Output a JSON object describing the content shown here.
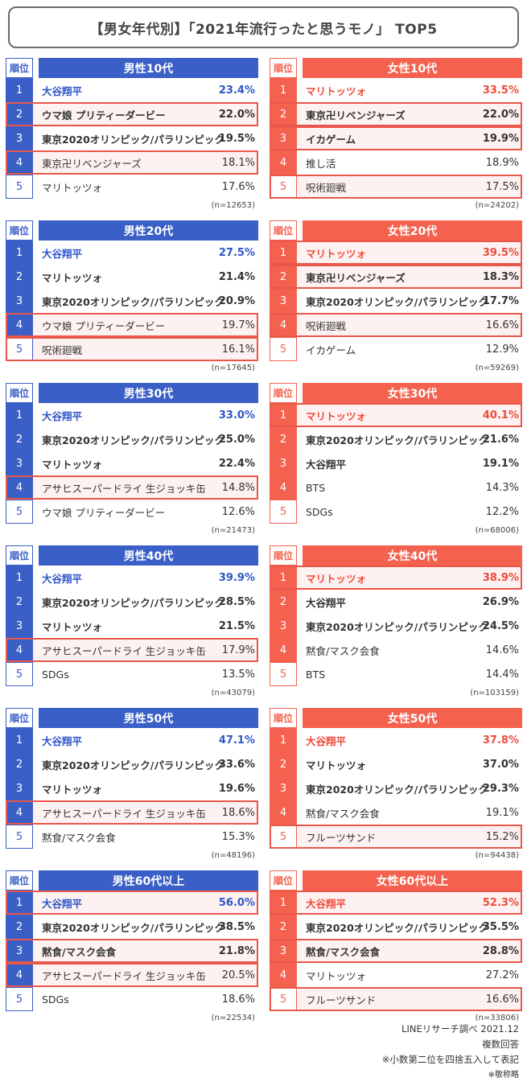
{
  "title": "【男女年代別】「2021年流行ったと思うモノ」 TOP5",
  "rank_header": "順位",
  "colors": {
    "male": "#3a5fc6",
    "female": "#f4624f",
    "highlight_border": "#e9574b"
  },
  "notes": [
    "LINEリサーチ調べ 2021.12",
    "複数回答",
    "※小数第二位を四捨五入して表記",
    "※敬称略"
  ],
  "chart_data": {
    "type": "table",
    "title": "【男女年代別】「2021年流行ったと思うモノ」 TOP5",
    "panels": [
      {
        "gender": "male",
        "title": "男性10代",
        "n": "(n=12653)",
        "rows": [
          {
            "rank": "1",
            "name": "大谷翔平",
            "value": "23.4%",
            "hl": false
          },
          {
            "rank": "2",
            "name": "ウマ娘 プリティーダービー",
            "value": "22.0%",
            "hl": true
          },
          {
            "rank": "3",
            "name": "東京2020オリンピック/パラリンピック",
            "value": "19.5%",
            "hl": false
          },
          {
            "rank": "4",
            "name": "東京卍リベンジャーズ",
            "value": "18.1%",
            "hl": true
          },
          {
            "rank": "5",
            "name": "マリトッツォ",
            "value": "17.6%",
            "hl": false
          }
        ]
      },
      {
        "gender": "female",
        "title": "女性10代",
        "n": "(n=24202)",
        "rows": [
          {
            "rank": "1",
            "name": "マリトッツォ",
            "value": "33.5%",
            "hl": false
          },
          {
            "rank": "2",
            "name": "東京卍リベンジャーズ",
            "value": "22.0%",
            "hl": true
          },
          {
            "rank": "3",
            "name": "イカゲーム",
            "value": "19.9%",
            "hl": true
          },
          {
            "rank": "4",
            "name": "推し活",
            "value": "18.9%",
            "hl": false
          },
          {
            "rank": "5",
            "name": "呪術廻戦",
            "value": "17.5%",
            "hl": true
          }
        ]
      },
      {
        "gender": "male",
        "title": "男性20代",
        "n": "(n=17645)",
        "rows": [
          {
            "rank": "1",
            "name": "大谷翔平",
            "value": "27.5%",
            "hl": false
          },
          {
            "rank": "2",
            "name": "マリトッツォ",
            "value": "21.4%",
            "hl": false
          },
          {
            "rank": "3",
            "name": "東京2020オリンピック/パラリンピック",
            "value": "20.9%",
            "hl": false
          },
          {
            "rank": "4",
            "name": "ウマ娘 プリティーダービー",
            "value": "19.7%",
            "hl": true
          },
          {
            "rank": "5",
            "name": "呪術廻戦",
            "value": "16.1%",
            "hl": true
          }
        ]
      },
      {
        "gender": "female",
        "title": "女性20代",
        "n": "(n=59269)",
        "rows": [
          {
            "rank": "1",
            "name": "マリトッツォ",
            "value": "39.5%",
            "hl": true
          },
          {
            "rank": "2",
            "name": "東京卍リベンジャーズ",
            "value": "18.3%",
            "hl": true
          },
          {
            "rank": "3",
            "name": "東京2020オリンピック/パラリンピック",
            "value": "17.7%",
            "hl": false
          },
          {
            "rank": "4",
            "name": "呪術廻戦",
            "value": "16.6%",
            "hl": true
          },
          {
            "rank": "5",
            "name": "イカゲーム",
            "value": "12.9%",
            "hl": false
          }
        ]
      },
      {
        "gender": "male",
        "title": "男性30代",
        "n": "(n=21473)",
        "rows": [
          {
            "rank": "1",
            "name": "大谷翔平",
            "value": "33.0%",
            "hl": false
          },
          {
            "rank": "2",
            "name": "東京2020オリンピック/パラリンピック",
            "value": "25.0%",
            "hl": false
          },
          {
            "rank": "3",
            "name": "マリトッツォ",
            "value": "22.4%",
            "hl": false
          },
          {
            "rank": "4",
            "name": "アサヒスーパードライ 生ジョッキ缶",
            "value": "14.8%",
            "hl": true
          },
          {
            "rank": "5",
            "name": "ウマ娘 プリティーダービー",
            "value": "12.6%",
            "hl": false
          }
        ]
      },
      {
        "gender": "female",
        "title": "女性30代",
        "n": "(n=68006)",
        "rows": [
          {
            "rank": "1",
            "name": "マリトッツォ",
            "value": "40.1%",
            "hl": true
          },
          {
            "rank": "2",
            "name": "東京2020オリンピック/パラリンピック",
            "value": "21.6%",
            "hl": false
          },
          {
            "rank": "3",
            "name": "大谷翔平",
            "value": "19.1%",
            "hl": false
          },
          {
            "rank": "4",
            "name": "BTS",
            "value": "14.3%",
            "hl": false
          },
          {
            "rank": "5",
            "name": "SDGs",
            "value": "12.2%",
            "hl": false
          }
        ]
      },
      {
        "gender": "male",
        "title": "男性40代",
        "n": "(n=43079)",
        "rows": [
          {
            "rank": "1",
            "name": "大谷翔平",
            "value": "39.9%",
            "hl": false
          },
          {
            "rank": "2",
            "name": "東京2020オリンピック/パラリンピック",
            "value": "28.5%",
            "hl": false
          },
          {
            "rank": "3",
            "name": "マリトッツォ",
            "value": "21.5%",
            "hl": false
          },
          {
            "rank": "4",
            "name": "アサヒスーパードライ 生ジョッキ缶",
            "value": "17.9%",
            "hl": true
          },
          {
            "rank": "5",
            "name": "SDGs",
            "value": "13.5%",
            "hl": false
          }
        ]
      },
      {
        "gender": "female",
        "title": "女性40代",
        "n": "(n=103159)",
        "rows": [
          {
            "rank": "1",
            "name": "マリトッツォ",
            "value": "38.9%",
            "hl": true
          },
          {
            "rank": "2",
            "name": "大谷翔平",
            "value": "26.9%",
            "hl": false
          },
          {
            "rank": "3",
            "name": "東京2020オリンピック/パラリンピック",
            "value": "24.5%",
            "hl": false
          },
          {
            "rank": "4",
            "name": "黙食/マスク会食",
            "value": "14.6%",
            "hl": false
          },
          {
            "rank": "5",
            "name": "BTS",
            "value": "14.4%",
            "hl": false
          }
        ]
      },
      {
        "gender": "male",
        "title": "男性50代",
        "n": "(n=48196)",
        "rows": [
          {
            "rank": "1",
            "name": "大谷翔平",
            "value": "47.1%",
            "hl": false
          },
          {
            "rank": "2",
            "name": "東京2020オリンピック/パラリンピック",
            "value": "33.6%",
            "hl": false
          },
          {
            "rank": "3",
            "name": "マリトッツォ",
            "value": "19.6%",
            "hl": false
          },
          {
            "rank": "4",
            "name": "アサヒスーパードライ 生ジョッキ缶",
            "value": "18.6%",
            "hl": true
          },
          {
            "rank": "5",
            "name": "黙食/マスク会食",
            "value": "15.3%",
            "hl": false
          }
        ]
      },
      {
        "gender": "female",
        "title": "女性50代",
        "n": "(n=94438)",
        "rows": [
          {
            "rank": "1",
            "name": "大谷翔平",
            "value": "37.8%",
            "hl": false
          },
          {
            "rank": "2",
            "name": "マリトッツォ",
            "value": "37.0%",
            "hl": false
          },
          {
            "rank": "3",
            "name": "東京2020オリンピック/パラリンピック",
            "value": "29.3%",
            "hl": false
          },
          {
            "rank": "4",
            "name": "黙食/マスク会食",
            "value": "19.1%",
            "hl": false
          },
          {
            "rank": "5",
            "name": "フルーツサンド",
            "value": "15.2%",
            "hl": true
          }
        ]
      },
      {
        "gender": "male",
        "title": "男性60代以上",
        "n": "(n=22534)",
        "rows": [
          {
            "rank": "1",
            "name": "大谷翔平",
            "value": "56.0%",
            "hl": true
          },
          {
            "rank": "2",
            "name": "東京2020オリンピック/パラリンピック",
            "value": "38.5%",
            "hl": false
          },
          {
            "rank": "3",
            "name": "黙食/マスク会食",
            "value": "21.8%",
            "hl": true
          },
          {
            "rank": "4",
            "name": "アサヒスーパードライ 生ジョッキ缶",
            "value": "20.5%",
            "hl": true
          },
          {
            "rank": "5",
            "name": "SDGs",
            "value": "18.6%",
            "hl": false
          }
        ]
      },
      {
        "gender": "female",
        "title": "女性60代以上",
        "n": "(n=33806)",
        "rows": [
          {
            "rank": "1",
            "name": "大谷翔平",
            "value": "52.3%",
            "hl": true
          },
          {
            "rank": "2",
            "name": "東京2020オリンピック/パラリンピック",
            "value": "35.5%",
            "hl": false
          },
          {
            "rank": "3",
            "name": "黙食/マスク会食",
            "value": "28.8%",
            "hl": true
          },
          {
            "rank": "4",
            "name": "マリトッツォ",
            "value": "27.2%",
            "hl": false
          },
          {
            "rank": "5",
            "name": "フルーツサンド",
            "value": "16.6%",
            "hl": true
          }
        ]
      }
    ]
  }
}
